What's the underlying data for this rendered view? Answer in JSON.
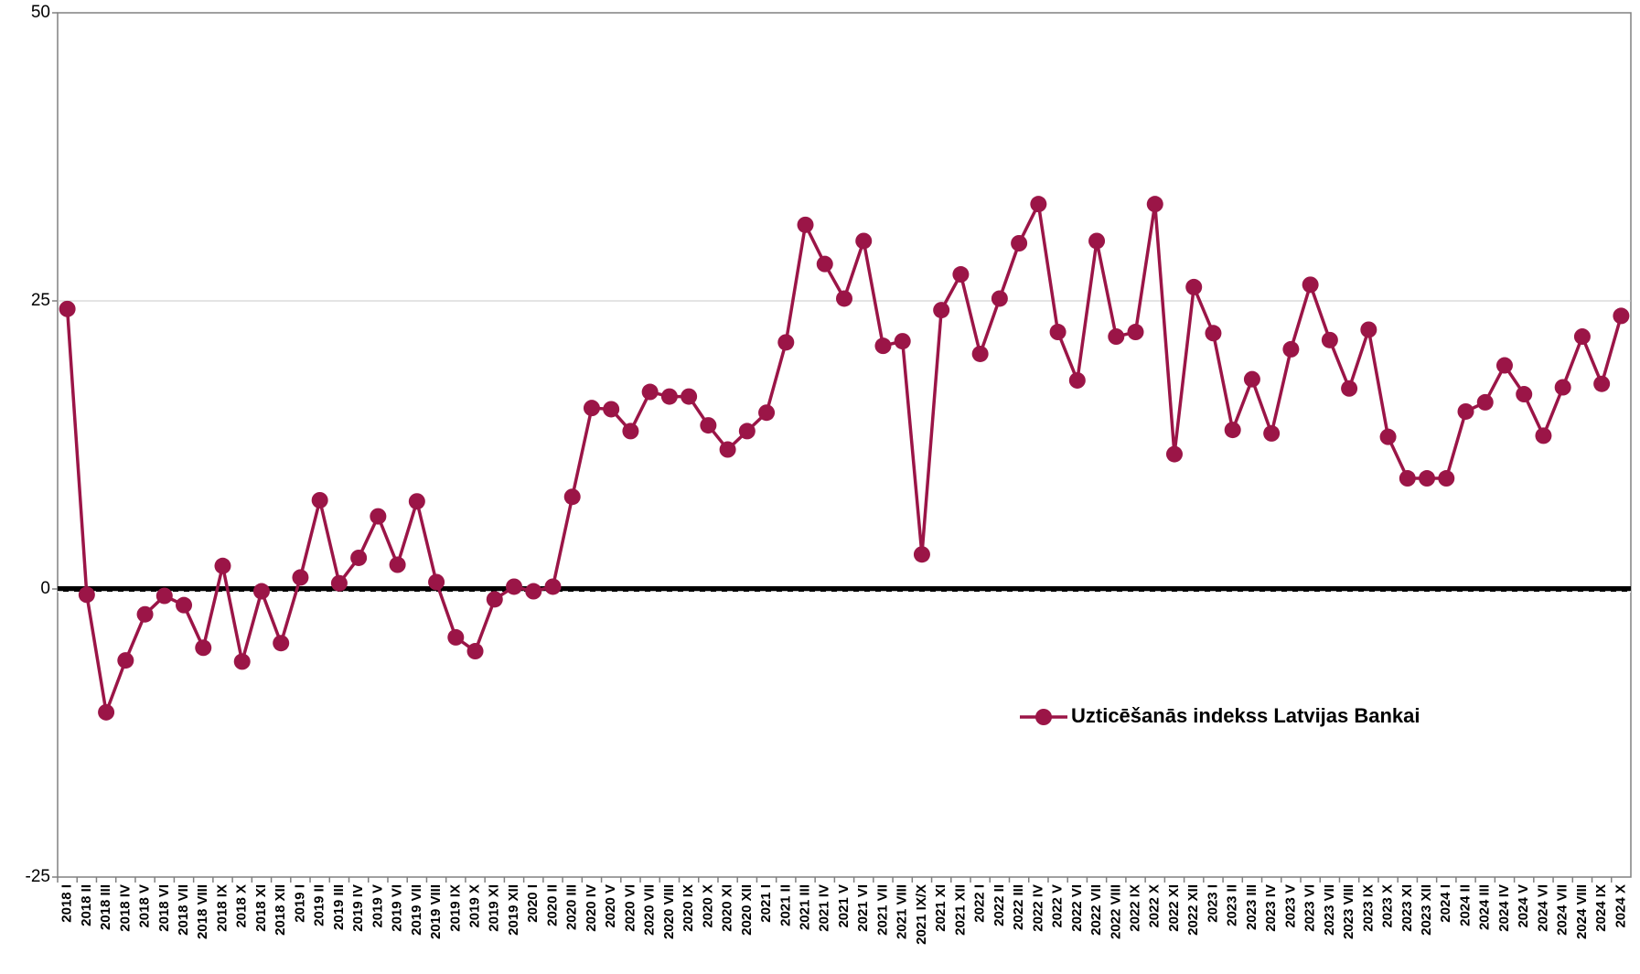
{
  "chart_data": {
    "type": "line",
    "categories": [
      "2018 I",
      "2018 II",
      "2018 III",
      "2018 IV",
      "2018 V",
      "2018 VI",
      "2018 VII",
      "2018 VIII",
      "2018 IX",
      "2018 X",
      "2018 XI",
      "2018 XII",
      "2019 I",
      "2019 II",
      "2019 III",
      "2019 IV",
      "2019 V",
      "2019 VI",
      "2019 VII",
      "2019 VIII",
      "2019 IX",
      "2019 X",
      "2019 XI",
      "2019 XII",
      "2020 I",
      "2020 II",
      "2020 III",
      "2020 IV",
      "2020 V",
      "2020 VI",
      "2020 VII",
      "2020 VIII",
      "2020 IX",
      "2020 X",
      "2020 XI",
      "2020 XII",
      "2021 I",
      "2021 II",
      "2021 III",
      "2021 IV",
      "2021 V",
      "2021 VI",
      "2021 VII",
      "2021 VIII",
      "2021 IX/X",
      "2021 XI",
      "2021 XII",
      "2022 I",
      "2022 II",
      "2022 III",
      "2022 IV",
      "2022 V",
      "2022 VI",
      "2022 VII",
      "2022 VIII",
      "2022 IX",
      "2022 X",
      "2022 XI",
      "2022 XII",
      "2023 I",
      "2023 II",
      "2023 III",
      "2023 IV",
      "2023 V",
      "2023 VI",
      "2023 VII",
      "2023 VIII",
      "2023 IX",
      "2023 X",
      "2023 XI",
      "2023 XII",
      "2024 I",
      "2024 II",
      "2024 III",
      "2024 IV",
      "2024 V",
      "2024 VI",
      "2024 VII",
      "2024 VIII",
      "2024 IX",
      "2024 X"
    ],
    "series": [
      {
        "name": "Uzticēšanās indekss Latvijas Bankai",
        "color": "#9b1547",
        "values": [
          24.3,
          -0.5,
          -10.7,
          -6.2,
          -2.2,
          -0.6,
          -1.4,
          -5.1,
          2.0,
          -6.3,
          -0.2,
          -4.7,
          1.0,
          7.7,
          0.5,
          2.7,
          6.3,
          2.1,
          7.6,
          0.6,
          -4.2,
          -5.4,
          -0.9,
          0.2,
          -0.2,
          0.2,
          8.0,
          15.7,
          15.6,
          13.7,
          17.1,
          16.7,
          16.7,
          14.2,
          12.1,
          13.7,
          15.3,
          21.4,
          31.6,
          28.2,
          25.2,
          30.2,
          21.1,
          21.5,
          3.0,
          24.2,
          27.3,
          20.4,
          25.2,
          30.0,
          33.4,
          22.3,
          18.1,
          30.2,
          21.9,
          22.3,
          33.4,
          11.7,
          26.2,
          22.2,
          13.8,
          18.2,
          13.5,
          20.8,
          26.4,
          21.6,
          17.4,
          22.5,
          13.2,
          9.6,
          9.6,
          9.6,
          15.4,
          16.2,
          19.4,
          16.9,
          13.3,
          17.5,
          21.9,
          17.8,
          23.7
        ]
      }
    ],
    "ylim": [
      -25,
      50
    ],
    "yticks": [
      -25,
      0,
      25,
      50
    ],
    "grid": true,
    "legend": "right"
  }
}
